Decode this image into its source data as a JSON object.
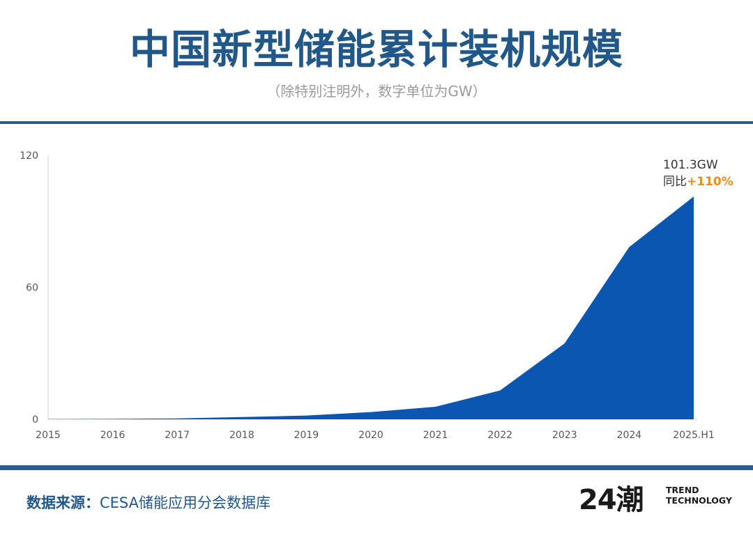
{
  "header": {
    "title": "中国新型储能累计装机规模",
    "subtitle": "（除特别注明外，数字单位为GW）"
  },
  "chart_data": {
    "type": "area",
    "title": "中国新型储能累计装机规模",
    "unit": "GW",
    "categories": [
      "2015",
      "2016",
      "2017",
      "2018",
      "2019",
      "2020",
      "2021",
      "2022",
      "2023",
      "2024",
      "2025.H1"
    ],
    "values": [
      0.1,
      0.2,
      0.4,
      1.0,
      1.7,
      3.3,
      5.7,
      13.1,
      34.5,
      78.3,
      101.3
    ],
    "ylim": [
      0,
      120
    ],
    "yticks": [
      "0",
      "60",
      "120"
    ],
    "xlabel": "",
    "ylabel": "",
    "grid": false,
    "color": "#0a56b0",
    "annotation": {
      "value_label": "101.3GW",
      "yoy_label": "同比",
      "yoy_value": "+110%"
    }
  },
  "footer": {
    "source_label": "数据来源：",
    "source_value": "CESA储能应用分会数据库",
    "logo": {
      "mark": "24潮",
      "line1": "TREND",
      "line2": "TECHNOLOGY"
    }
  },
  "colors": {
    "title": "#215889",
    "rule": "#2c5d8a",
    "area": "#0a56b0",
    "accent": "#ef8a1f"
  }
}
